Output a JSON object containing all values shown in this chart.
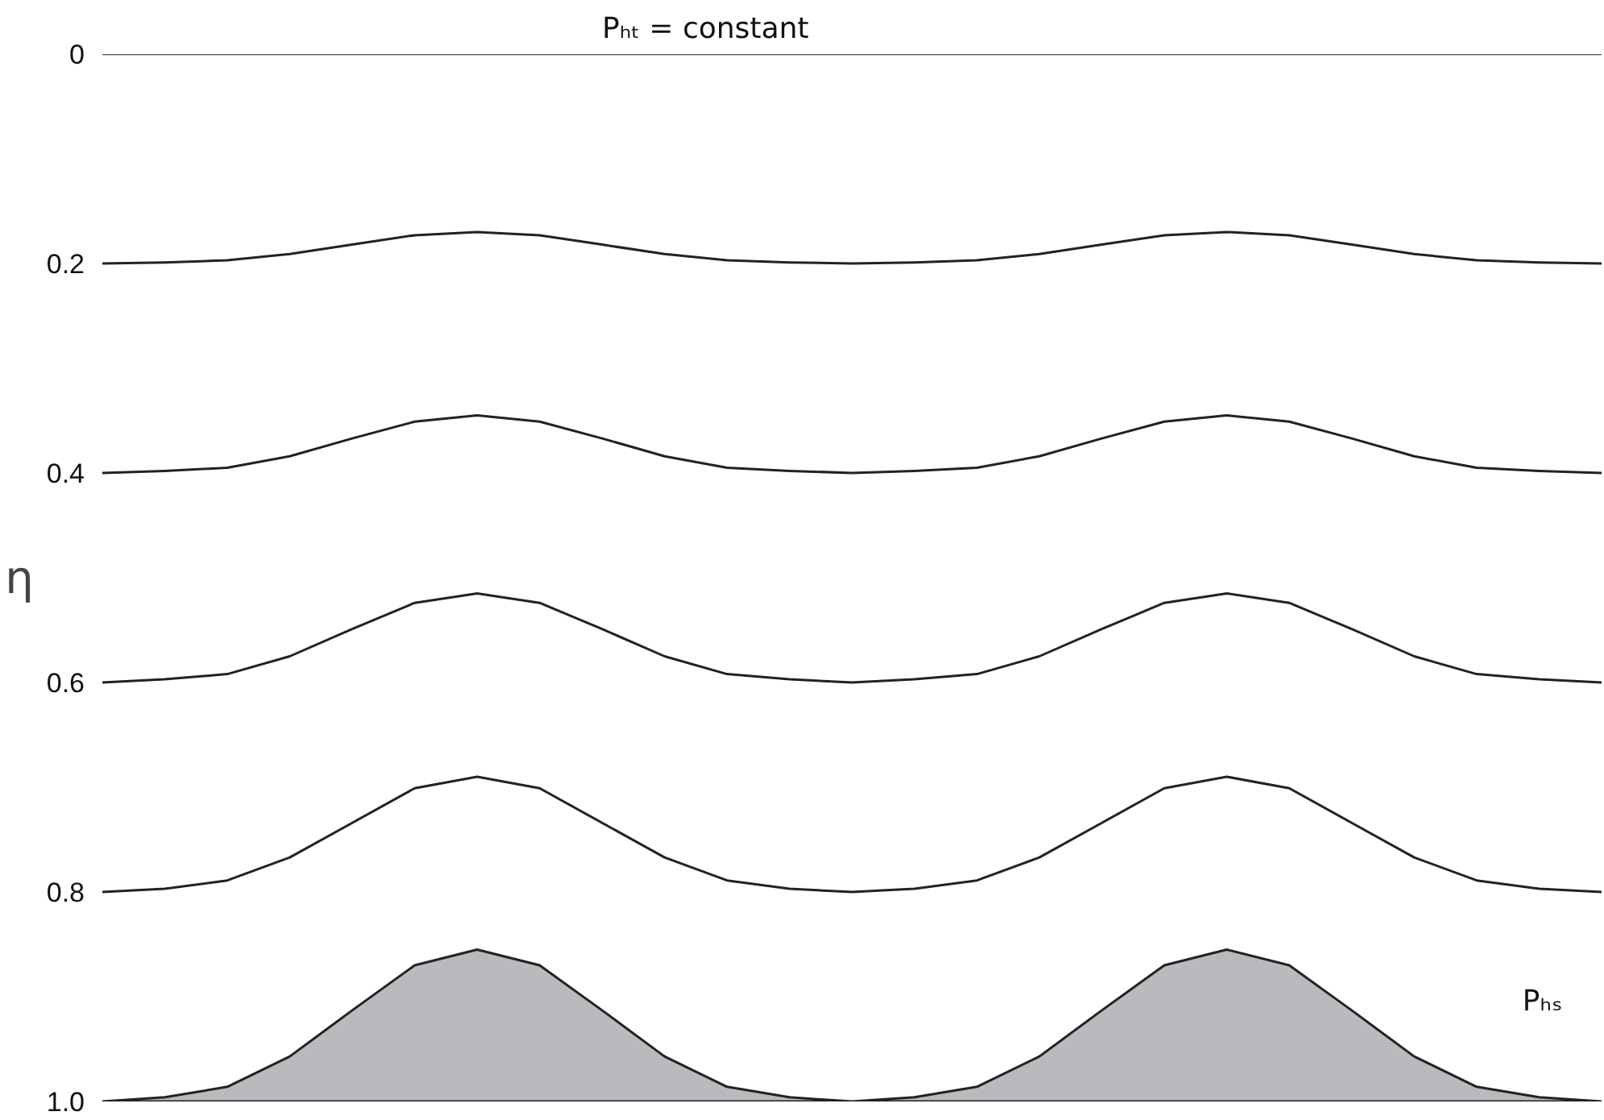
{
  "chart_data": {
    "type": "line",
    "ylabel": "η",
    "categories": [
      null,
      null,
      null,
      null,
      null,
      null,
      null,
      null,
      null,
      null,
      null,
      null,
      null,
      null,
      null,
      null,
      null,
      null,
      null,
      null,
      null,
      null,
      null,
      null,
      null
    ],
    "series": [
      {
        "color": "#666666",
        "values": [
          0,
          0,
          0,
          0,
          0,
          0,
          0,
          0,
          0,
          0,
          0,
          0,
          0,
          0,
          0,
          0,
          0,
          0,
          0,
          0,
          0,
          0,
          0,
          0,
          0
        ]
      },
      {
        "color": "#222222",
        "values": [
          0.2,
          0.199,
          0.197,
          0.191,
          0.182,
          0.173,
          0.17,
          0.173,
          0.182,
          0.191,
          0.197,
          0.199,
          0.2,
          0.199,
          0.197,
          0.191,
          0.182,
          0.173,
          0.17,
          0.173,
          0.182,
          0.191,
          0.197,
          0.199,
          0.2
        ]
      },
      {
        "color": "#222222",
        "values": [
          0.4,
          0.398,
          0.395,
          0.384,
          0.367,
          0.351,
          0.345,
          0.351,
          0.367,
          0.384,
          0.395,
          0.398,
          0.4,
          0.398,
          0.395,
          0.384,
          0.367,
          0.351,
          0.345,
          0.351,
          0.367,
          0.384,
          0.395,
          0.398,
          0.4
        ]
      },
      {
        "color": "#222222",
        "values": [
          0.6,
          0.597,
          0.592,
          0.575,
          0.549,
          0.524,
          0.515,
          0.524,
          0.549,
          0.575,
          0.592,
          0.597,
          0.6,
          0.597,
          0.592,
          0.575,
          0.549,
          0.524,
          0.515,
          0.524,
          0.549,
          0.575,
          0.592,
          0.597,
          0.6
        ]
      },
      {
        "color": "#222222",
        "values": [
          0.8,
          0.797,
          0.789,
          0.767,
          0.734,
          0.701,
          0.69,
          0.701,
          0.734,
          0.767,
          0.789,
          0.797,
          0.8,
          0.797,
          0.789,
          0.767,
          0.734,
          0.701,
          0.69,
          0.701,
          0.734,
          0.767,
          0.789,
          0.797,
          0.8
        ]
      },
      {
        "type": "area",
        "color": "#b9babd",
        "values": [
          1.0,
          0.996,
          0.986,
          0.957,
          0.913,
          0.87,
          0.855,
          0.87,
          0.913,
          0.957,
          0.986,
          0.996,
          1.0,
          0.996,
          0.986,
          0.957,
          0.913,
          0.87,
          0.855,
          0.87,
          0.913,
          0.957,
          0.986,
          0.996,
          1.0
        ]
      }
    ],
    "ylim": [
      1.0,
      0
    ],
    "yticks": [
      0,
      0.2,
      0.4,
      0.6,
      0.8,
      {
        "value": 1.0,
        "label": "1.0"
      }
    ],
    "tick_labels": "y",
    "annotations": [
      "Pₕₜ = constant",
      "Pₕₛ"
    ]
  }
}
